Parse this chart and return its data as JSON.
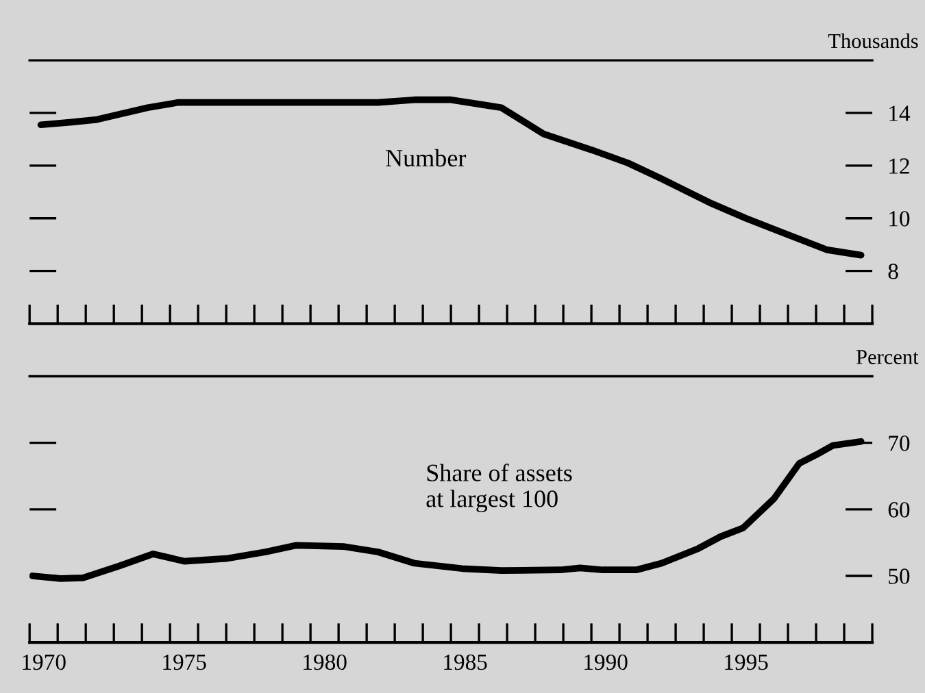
{
  "chart_data": [
    {
      "type": "line",
      "ylabel": "Thousands",
      "tick_labels": "y",
      "grid": false,
      "legend": false,
      "xlim": [
        1969.5,
        1999.5
      ],
      "ylim": [
        6,
        16
      ],
      "yticks": [
        8,
        10,
        12,
        14
      ],
      "xticks": [
        {
          "value": 1969.5,
          "label": null
        },
        {
          "value": 1970.5,
          "label": null
        },
        {
          "value": 1971.5,
          "label": null
        },
        {
          "value": 1972.5,
          "label": null
        },
        {
          "value": 1973.5,
          "label": null
        },
        {
          "value": 1974.5,
          "label": null
        },
        {
          "value": 1975.5,
          "label": null
        },
        {
          "value": 1976.5,
          "label": null
        },
        {
          "value": 1977.5,
          "label": null
        },
        {
          "value": 1978.5,
          "label": null
        },
        {
          "value": 1979.5,
          "label": null
        },
        {
          "value": 1980.5,
          "label": null
        },
        {
          "value": 1981.5,
          "label": null
        },
        {
          "value": 1982.5,
          "label": null
        },
        {
          "value": 1983.5,
          "label": null
        },
        {
          "value": 1984.5,
          "label": null
        },
        {
          "value": 1985.5,
          "label": null
        },
        {
          "value": 1986.5,
          "label": null
        },
        {
          "value": 1987.5,
          "label": null
        },
        {
          "value": 1988.5,
          "label": null
        },
        {
          "value": 1989.5,
          "label": null
        },
        {
          "value": 1990.5,
          "label": null
        },
        {
          "value": 1991.5,
          "label": null
        },
        {
          "value": 1992.5,
          "label": null
        },
        {
          "value": 1993.5,
          "label": null
        },
        {
          "value": 1994.5,
          "label": null
        },
        {
          "value": 1995.5,
          "label": null
        },
        {
          "value": 1996.5,
          "label": null
        },
        {
          "value": 1997.5,
          "label": null
        },
        {
          "value": 1998.5,
          "label": null
        },
        {
          "value": 1999.5,
          "label": null
        }
      ],
      "marker": "none",
      "line_style": "solid",
      "series": [
        {
          "name": "Number",
          "color": "#000000",
          "x": [
            1969.9,
            1971.0,
            1971.9,
            1973.7,
            1974.8,
            1976.9,
            1981.9,
            1983.2,
            1984.5,
            1985.7,
            1986.3,
            1987.8,
            1989.5,
            1990.8,
            1992.0,
            1993.7,
            1995.0,
            1996.2,
            1997.9,
            1999.1
          ],
          "values": [
            13.55,
            13.65,
            13.75,
            14.2,
            14.4,
            14.4,
            14.4,
            14.5,
            14.5,
            14.3,
            14.2,
            13.2,
            12.6,
            12.1,
            11.5,
            10.6,
            10.0,
            9.5,
            8.8,
            8.6
          ]
        }
      ]
    },
    {
      "type": "line",
      "ylabel": "Percent",
      "grid": false,
      "legend": false,
      "xlim": [
        1969.5,
        1999.5
      ],
      "ylim": [
        40,
        80
      ],
      "yticks": [
        50,
        60,
        70
      ],
      "xticks": [
        {
          "value": 1969.5,
          "label": null
        },
        {
          "value": 1970,
          "label": "1970"
        },
        {
          "value": 1970.5,
          "label": null
        },
        {
          "value": 1971.5,
          "label": null
        },
        {
          "value": 1972.5,
          "label": null
        },
        {
          "value": 1973.5,
          "label": null
        },
        {
          "value": 1974.5,
          "label": null
        },
        {
          "value": 1975,
          "label": "1975"
        },
        {
          "value": 1975.5,
          "label": null
        },
        {
          "value": 1976.5,
          "label": null
        },
        {
          "value": 1977.5,
          "label": null
        },
        {
          "value": 1978.5,
          "label": null
        },
        {
          "value": 1979.5,
          "label": null
        },
        {
          "value": 1980,
          "label": "1980"
        },
        {
          "value": 1980.5,
          "label": null
        },
        {
          "value": 1981.5,
          "label": null
        },
        {
          "value": 1982.5,
          "label": null
        },
        {
          "value": 1983.5,
          "label": null
        },
        {
          "value": 1984.5,
          "label": null
        },
        {
          "value": 1985,
          "label": "1985"
        },
        {
          "value": 1985.5,
          "label": null
        },
        {
          "value": 1986.5,
          "label": null
        },
        {
          "value": 1987.5,
          "label": null
        },
        {
          "value": 1988.5,
          "label": null
        },
        {
          "value": 1989.5,
          "label": null
        },
        {
          "value": 1990,
          "label": "1990"
        },
        {
          "value": 1990.5,
          "label": null
        },
        {
          "value": 1991.5,
          "label": null
        },
        {
          "value": 1992.5,
          "label": null
        },
        {
          "value": 1993.5,
          "label": null
        },
        {
          "value": 1994.5,
          "label": null
        },
        {
          "value": 1995,
          "label": "1995"
        },
        {
          "value": 1995.5,
          "label": null
        },
        {
          "value": 1996.5,
          "label": null
        },
        {
          "value": 1997.5,
          "label": null
        },
        {
          "value": 1998.5,
          "label": null
        },
        {
          "value": 1999.5,
          "label": null
        }
      ],
      "marker": "none",
      "line_style": "solid",
      "series": [
        {
          "name": "Share of assets\nat largest 100",
          "color": "#000000",
          "x": [
            1969.6,
            1970.6,
            1971.4,
            1972.7,
            1973.9,
            1975.0,
            1976.5,
            1977.9,
            1979.0,
            1980.7,
            1981.9,
            1983.2,
            1984.9,
            1986.3,
            1988.4,
            1989.1,
            1989.9,
            1991.1,
            1992.0,
            1993.3,
            1994.1,
            1994.9,
            1996.0,
            1996.9,
            1997.5,
            1998.1,
            1999.1
          ],
          "values": [
            50.0,
            49.6,
            49.7,
            51.5,
            53.3,
            52.2,
            52.6,
            53.6,
            54.6,
            54.4,
            53.6,
            51.9,
            51.1,
            50.8,
            50.9,
            51.2,
            50.9,
            50.9,
            51.9,
            54.1,
            55.9,
            57.2,
            61.6,
            66.9,
            68.2,
            69.6,
            70.2
          ]
        }
      ]
    }
  ]
}
